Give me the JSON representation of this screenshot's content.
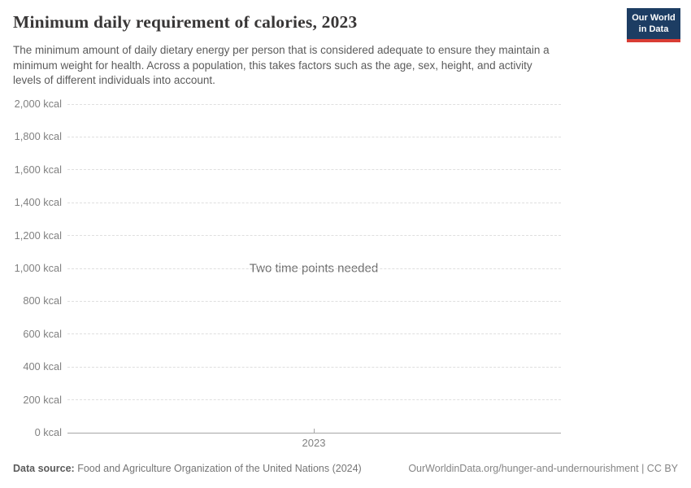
{
  "header": {
    "title": "Minimum daily requirement of calories, 2023",
    "subtitle_lines": [
      "The minimum amount of daily dietary energy per person that is considered adequate to ensure they maintain a",
      "minimum weight for health. Across a population, this takes factors such as the age, sex, height, and activity",
      "levels of different individuals into account."
    ],
    "logo": {
      "line1": "Our World",
      "line2": "in Data",
      "bg_color": "#1d3d63",
      "accent_color": "#d93d34"
    }
  },
  "chart_data": {
    "type": "line",
    "title": "Minimum daily requirement of calories, 2023",
    "series": [],
    "empty_state_message": "Two time points needed",
    "ylim": [
      0,
      2000
    ],
    "ylabel": "",
    "xlabel": "",
    "grid": "horizontal-dashed",
    "legend_position": "none",
    "y_ticks": [
      {
        "value": 0,
        "label": "0 kcal"
      },
      {
        "value": 200,
        "label": "200 kcal"
      },
      {
        "value": 400,
        "label": "400 kcal"
      },
      {
        "value": 600,
        "label": "600 kcal"
      },
      {
        "value": 800,
        "label": "800 kcal"
      },
      {
        "value": 1000,
        "label": "1,000 kcal"
      },
      {
        "value": 1200,
        "label": "1,200 kcal"
      },
      {
        "value": 1400,
        "label": "1,400 kcal"
      },
      {
        "value": 1600,
        "label": "1,600 kcal"
      },
      {
        "value": 1800,
        "label": "1,800 kcal"
      },
      {
        "value": 2000,
        "label": "2,000 kcal"
      }
    ],
    "x_values": [
      2023
    ],
    "x_tick_labels": [
      "2023"
    ]
  },
  "footer": {
    "data_source_label": "Data source:",
    "data_source_value": " Food and Agriculture Organization of the United Nations (2024)",
    "link_text": "OurWorldinData.org/hunger-and-undernourishment",
    "license_text": " | CC BY"
  }
}
